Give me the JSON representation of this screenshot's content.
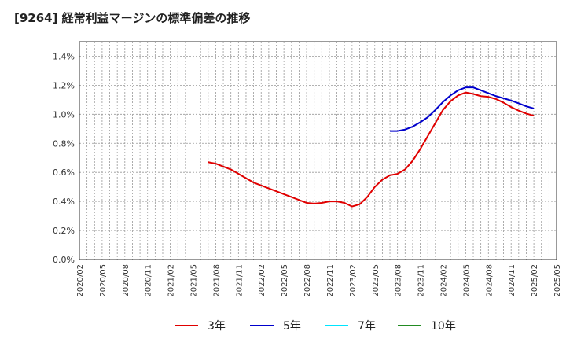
{
  "chart_data": {
    "type": "line",
    "title": "[9264]  経常利益マージンの標準偏差の推移",
    "xlabel": "",
    "ylabel": "",
    "ylim": [
      0,
      1.5
    ],
    "yticks": [
      "0.0%",
      "0.2%",
      "0.4%",
      "0.6%",
      "0.8%",
      "1.0%",
      "1.2%",
      "1.4%"
    ],
    "ytick_values": [
      0,
      0.2,
      0.4,
      0.6,
      0.8,
      1.0,
      1.2,
      1.4
    ],
    "xticks": [
      "2020/02",
      "2020/05",
      "2020/08",
      "2020/11",
      "2021/02",
      "2021/05",
      "2021/08",
      "2021/11",
      "2022/02",
      "2022/05",
      "2022/08",
      "2022/11",
      "2023/02",
      "2023/05",
      "2023/08",
      "2023/11",
      "2024/02",
      "2024/05",
      "2024/08",
      "2024/11",
      "2025/02",
      "2025/05"
    ],
    "grid": true,
    "legend_position": "bottom",
    "series": [
      {
        "name": "3年",
        "color": "#e00000",
        "points": [
          [
            "2021/07",
            0.67
          ],
          [
            "2021/08",
            0.66
          ],
          [
            "2021/09",
            0.64
          ],
          [
            "2021/10",
            0.62
          ],
          [
            "2021/11",
            0.59
          ],
          [
            "2021/12",
            0.56
          ],
          [
            "2022/01",
            0.53
          ],
          [
            "2022/02",
            0.51
          ],
          [
            "2022/03",
            0.49
          ],
          [
            "2022/04",
            0.47
          ],
          [
            "2022/05",
            0.45
          ],
          [
            "2022/06",
            0.43
          ],
          [
            "2022/07",
            0.41
          ],
          [
            "2022/08",
            0.39
          ],
          [
            "2022/09",
            0.385
          ],
          [
            "2022/10",
            0.39
          ],
          [
            "2022/11",
            0.4
          ],
          [
            "2022/12",
            0.4
          ],
          [
            "2023/01",
            0.39
          ],
          [
            "2023/02",
            0.365
          ],
          [
            "2023/03",
            0.38
          ],
          [
            "2023/04",
            0.43
          ],
          [
            "2023/05",
            0.5
          ],
          [
            "2023/06",
            0.55
          ],
          [
            "2023/07",
            0.58
          ],
          [
            "2023/08",
            0.59
          ],
          [
            "2023/09",
            0.62
          ],
          [
            "2023/10",
            0.68
          ],
          [
            "2023/11",
            0.76
          ],
          [
            "2023/12",
            0.85
          ],
          [
            "2024/01",
            0.94
          ],
          [
            "2024/02",
            1.03
          ],
          [
            "2024/03",
            1.09
          ],
          [
            "2024/04",
            1.13
          ],
          [
            "2024/05",
            1.15
          ],
          [
            "2024/06",
            1.14
          ],
          [
            "2024/07",
            1.125
          ],
          [
            "2024/08",
            1.12
          ],
          [
            "2024/09",
            1.105
          ],
          [
            "2024/10",
            1.08
          ],
          [
            "2024/11",
            1.05
          ],
          [
            "2024/12",
            1.025
          ],
          [
            "2025/01",
            1.005
          ],
          [
            "2025/02",
            0.99
          ]
        ]
      },
      {
        "name": "5年",
        "color": "#0000cc",
        "points": [
          [
            "2023/07",
            0.885
          ],
          [
            "2023/08",
            0.885
          ],
          [
            "2023/09",
            0.895
          ],
          [
            "2023/10",
            0.915
          ],
          [
            "2023/11",
            0.945
          ],
          [
            "2023/12",
            0.98
          ],
          [
            "2024/01",
            1.03
          ],
          [
            "2024/02",
            1.085
          ],
          [
            "2024/03",
            1.13
          ],
          [
            "2024/04",
            1.165
          ],
          [
            "2024/05",
            1.185
          ],
          [
            "2024/06",
            1.185
          ],
          [
            "2024/07",
            1.165
          ],
          [
            "2024/08",
            1.145
          ],
          [
            "2024/09",
            1.125
          ],
          [
            "2024/10",
            1.11
          ],
          [
            "2024/11",
            1.095
          ],
          [
            "2024/12",
            1.075
          ],
          [
            "2025/01",
            1.055
          ],
          [
            "2025/02",
            1.04
          ]
        ]
      },
      {
        "name": "7年",
        "color": "#00e5ff",
        "points": []
      },
      {
        "name": "10年",
        "color": "#228b22",
        "points": []
      }
    ]
  }
}
